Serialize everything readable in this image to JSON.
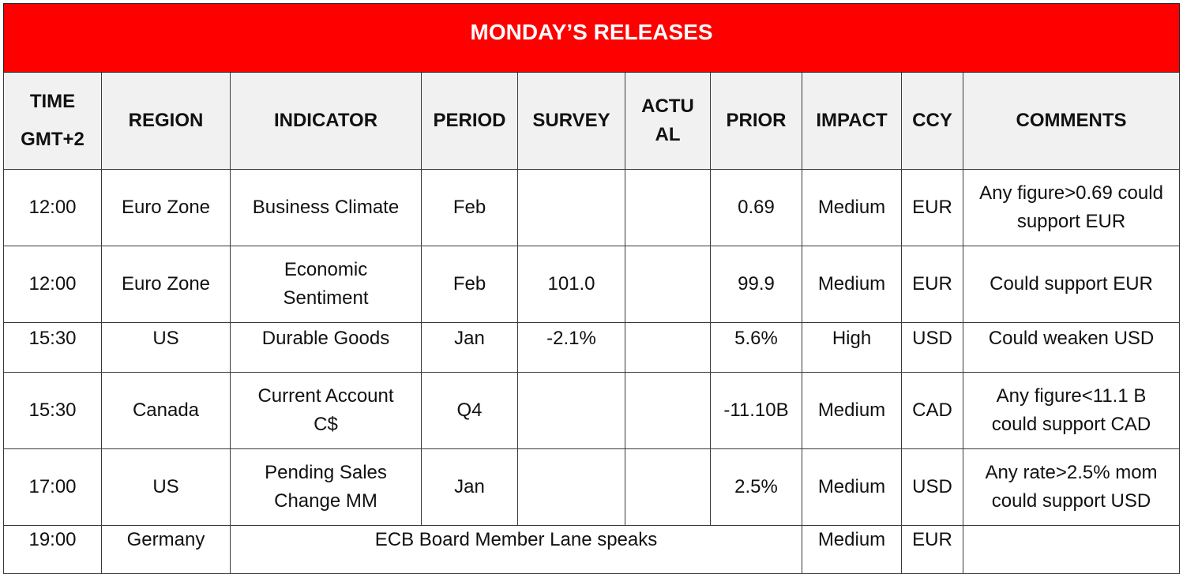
{
  "title": "MONDAY’S RELEASES",
  "headers": {
    "time_line1": "TIME",
    "time_line2": "GMT+2",
    "region": "REGION",
    "indicator": "INDICATOR",
    "period": "PERIOD",
    "survey": "SURVEY",
    "actual": "ACTU AL",
    "prior": "PRIOR",
    "impact": "IMPACT",
    "ccy": "CCY",
    "comments": "COMMENTS"
  },
  "rows": [
    {
      "time": "12:00",
      "region": "Euro Zone",
      "indicator": "Business Climate",
      "period": "Feb",
      "survey": "",
      "actual": "",
      "prior": "0.69",
      "impact": "Medium",
      "ccy": "EUR",
      "comments": "Any figure>0.69 could support EUR"
    },
    {
      "time": "12:00",
      "region": "Euro Zone",
      "indicator": "Economic Sentiment",
      "period": "Feb",
      "survey": "101.0",
      "actual": "",
      "prior": "99.9",
      "impact": "Medium",
      "ccy": "EUR",
      "comments": "Could support EUR"
    },
    {
      "time": "15:30",
      "region": "US",
      "indicator": "Durable Goods",
      "period": "Jan",
      "survey": "-2.1%",
      "actual": "",
      "prior": "5.6%",
      "impact": "High",
      "ccy": "USD",
      "comments": "Could weaken USD"
    },
    {
      "time": "15:30",
      "region": "Canada",
      "indicator": "Current Account C$",
      "period": "Q4",
      "survey": "",
      "actual": "",
      "prior": "-11.10B",
      "impact": "Medium",
      "ccy": "CAD",
      "comments": "Any figure<11.1 B could support CAD"
    },
    {
      "time": "17:00",
      "region": "US",
      "indicator": "Pending Sales Change MM",
      "period": "Jan",
      "survey": "",
      "actual": "",
      "prior": "2.5%",
      "impact": "Medium",
      "ccy": "USD",
      "comments": "Any rate>2.5% mom could support USD"
    },
    {
      "time": "19:00",
      "region": "Germany",
      "indicator": "ECB Board Member Lane speaks",
      "impact": "Medium",
      "ccy": "EUR",
      "comments": ""
    }
  ],
  "colors": {
    "title_bg": "#ff0000",
    "header_bg": "#f1f1f1",
    "title_text": "#ffffff"
  }
}
